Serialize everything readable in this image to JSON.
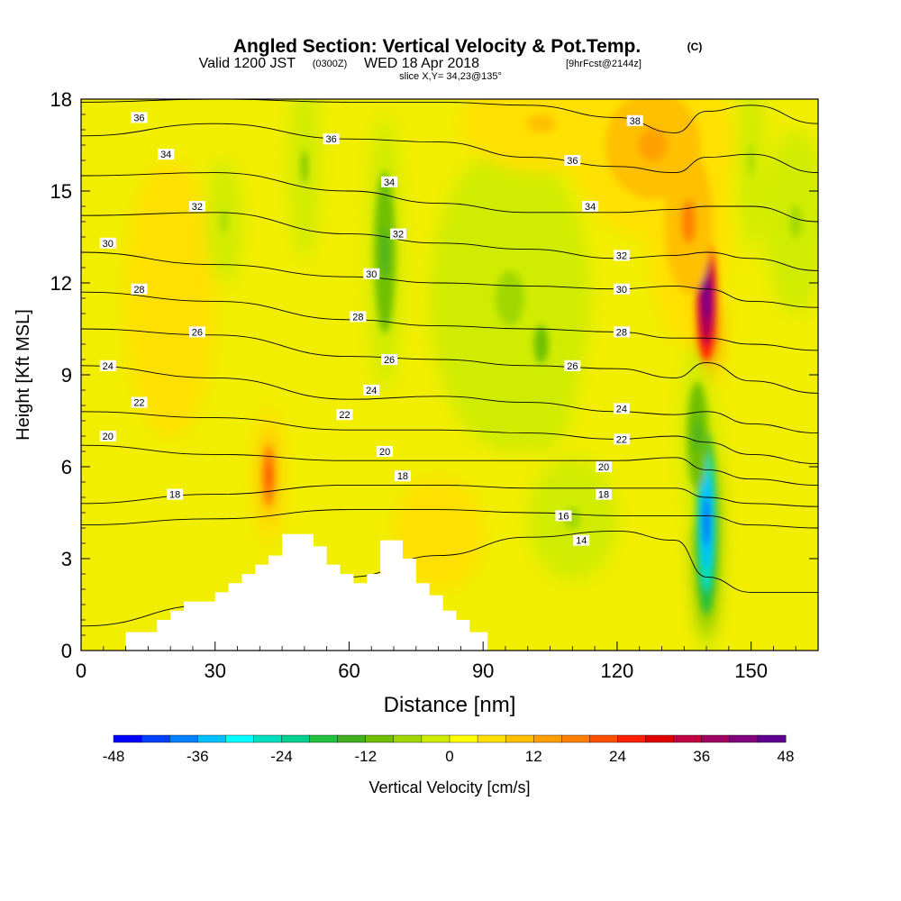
{
  "chart_data": {
    "type": "heatmap",
    "title": "Angled Section: Vertical Velocity & Pot.Temp.",
    "title_unit": "(C)",
    "subtitle_valid": "Valid 1200 JST",
    "subtitle_utc": "(0300Z)",
    "subtitle_date": "WED 18 Apr 2018",
    "subtitle_fcst": "[9hrFcst@2144z]",
    "slice_label": "slice X,Y= 34,23@135°",
    "xlabel": "Distance [nm]",
    "ylabel": "Height [Kft MSL]",
    "xlim": [
      0,
      165
    ],
    "ylim": [
      0,
      18
    ],
    "xticks": [
      0,
      30,
      60,
      90,
      120,
      150
    ],
    "yticks": [
      0,
      3,
      6,
      9,
      12,
      15,
      18
    ],
    "colorbar": {
      "label": "Vertical Velocity [cm/s]",
      "ticks": [
        -48,
        -36,
        -24,
        -12,
        0,
        12,
        24,
        36,
        48
      ],
      "colors": [
        "#0000ff",
        "#0040ff",
        "#0080ff",
        "#00c0ff",
        "#00ffff",
        "#00e0c0",
        "#00d090",
        "#20c040",
        "#40b020",
        "#70c000",
        "#a0d800",
        "#d0ec00",
        "#ffff00",
        "#ffe000",
        "#ffc000",
        "#ffa000",
        "#ff8000",
        "#ff5000",
        "#ff2000",
        "#e00000",
        "#c00040",
        "#a00060",
        "#800080",
        "#600090"
      ]
    },
    "terrain_kft": [
      [
        0,
        0
      ],
      [
        10,
        0
      ],
      [
        10,
        0.6
      ],
      [
        17,
        0.6
      ],
      [
        17,
        1
      ],
      [
        20,
        1
      ],
      [
        20,
        1.3
      ],
      [
        23,
        1.3
      ],
      [
        23,
        1.6
      ],
      [
        30,
        1.6
      ],
      [
        30,
        1.9
      ],
      [
        33,
        1.9
      ],
      [
        33,
        2.2
      ],
      [
        36,
        2.2
      ],
      [
        36,
        2.5
      ],
      [
        39,
        2.5
      ],
      [
        39,
        2.8
      ],
      [
        42,
        2.8
      ],
      [
        42,
        3.1
      ],
      [
        45,
        3.1
      ],
      [
        45,
        3.8
      ],
      [
        52,
        3.8
      ],
      [
        52,
        3.4
      ],
      [
        55,
        3.4
      ],
      [
        55,
        2.8
      ],
      [
        58,
        2.8
      ],
      [
        58,
        2.5
      ],
      [
        61,
        2.5
      ],
      [
        61,
        2.2
      ],
      [
        64,
        2.2
      ],
      [
        64,
        2.5
      ],
      [
        67,
        2.5
      ],
      [
        67,
        3.6
      ],
      [
        72,
        3.6
      ],
      [
        72,
        3
      ],
      [
        75,
        3
      ],
      [
        75,
        2.2
      ],
      [
        78,
        2.2
      ],
      [
        78,
        1.8
      ],
      [
        81,
        1.8
      ],
      [
        81,
        1.3
      ],
      [
        84,
        1.3
      ],
      [
        84,
        1
      ],
      [
        87,
        1
      ],
      [
        87,
        0.6
      ],
      [
        91,
        0.6
      ],
      [
        91,
        0
      ],
      [
        165,
        0
      ]
    ],
    "isentropes_c": [
      {
        "level": 14,
        "points": [
          [
            0,
            0.8
          ],
          [
            30,
            1.5
          ],
          [
            60,
            2.4
          ],
          [
            80,
            3.1
          ],
          [
            100,
            3.7
          ],
          [
            120,
            3.9
          ],
          [
            133,
            3.6
          ],
          [
            140,
            2.4
          ],
          [
            150,
            1.9
          ],
          [
            165,
            1.9
          ]
        ]
      },
      {
        "level": 16,
        "points": [
          [
            0,
            4.1
          ],
          [
            30,
            4.3
          ],
          [
            60,
            4.6
          ],
          [
            80,
            4.6
          ],
          [
            100,
            4.5
          ],
          [
            120,
            4.4
          ],
          [
            133,
            4.4
          ],
          [
            140,
            4.4
          ],
          [
            150,
            4.1
          ],
          [
            165,
            4.0
          ]
        ]
      },
      {
        "level": 18,
        "points": [
          [
            0,
            4.8
          ],
          [
            30,
            5.1
          ],
          [
            60,
            5.4
          ],
          [
            80,
            5.4
          ],
          [
            100,
            5.3
          ],
          [
            120,
            5.3
          ],
          [
            133,
            5.3
          ],
          [
            140,
            5.0
          ],
          [
            150,
            4.8
          ],
          [
            165,
            4.7
          ]
        ]
      },
      {
        "level": 20,
        "points": [
          [
            0,
            6.7
          ],
          [
            30,
            6.4
          ],
          [
            60,
            6.2
          ],
          [
            80,
            6.2
          ],
          [
            100,
            6.2
          ],
          [
            120,
            6.2
          ],
          [
            133,
            6.3
          ],
          [
            140,
            5.9
          ],
          [
            150,
            5.6
          ],
          [
            165,
            5.4
          ]
        ]
      },
      {
        "level": 22,
        "points": [
          [
            0,
            7.8
          ],
          [
            30,
            7.6
          ],
          [
            60,
            7.2
          ],
          [
            80,
            7.2
          ],
          [
            100,
            7.1
          ],
          [
            120,
            6.9
          ],
          [
            133,
            7.0
          ],
          [
            140,
            6.8
          ],
          [
            150,
            6.4
          ],
          [
            165,
            6.1
          ]
        ]
      },
      {
        "level": 24,
        "points": [
          [
            0,
            9.3
          ],
          [
            30,
            8.9
          ],
          [
            60,
            8.2
          ],
          [
            80,
            8.3
          ],
          [
            100,
            8.1
          ],
          [
            120,
            7.8
          ],
          [
            133,
            7.7
          ],
          [
            140,
            7.8
          ],
          [
            150,
            7.4
          ],
          [
            165,
            7.1
          ]
        ]
      },
      {
        "level": 26,
        "points": [
          [
            0,
            10.5
          ],
          [
            30,
            10.3
          ],
          [
            60,
            9.6
          ],
          [
            80,
            9.5
          ],
          [
            100,
            9.3
          ],
          [
            120,
            9.2
          ],
          [
            133,
            8.9
          ],
          [
            140,
            9.4
          ],
          [
            150,
            8.8
          ],
          [
            165,
            8.4
          ]
        ]
      },
      {
        "level": 28,
        "points": [
          [
            0,
            11.7
          ],
          [
            30,
            11.4
          ],
          [
            60,
            10.8
          ],
          [
            80,
            10.6
          ],
          [
            100,
            10.5
          ],
          [
            120,
            10.4
          ],
          [
            133,
            10.2
          ],
          [
            140,
            10.2
          ],
          [
            150,
            10.0
          ],
          [
            165,
            9.8
          ]
        ]
      },
      {
        "level": 30,
        "points": [
          [
            0,
            13.0
          ],
          [
            30,
            12.6
          ],
          [
            60,
            12.2
          ],
          [
            80,
            12.0
          ],
          [
            100,
            11.9
          ],
          [
            120,
            11.8
          ],
          [
            133,
            11.9
          ],
          [
            140,
            11.8
          ],
          [
            150,
            11.4
          ],
          [
            165,
            11.2
          ]
        ]
      },
      {
        "level": 32,
        "points": [
          [
            0,
            14.2
          ],
          [
            30,
            14.3
          ],
          [
            60,
            13.6
          ],
          [
            80,
            13.3
          ],
          [
            100,
            13.1
          ],
          [
            120,
            12.8
          ],
          [
            133,
            12.9
          ],
          [
            140,
            13.0
          ],
          [
            150,
            12.8
          ],
          [
            165,
            12.4
          ]
        ]
      },
      {
        "level": 34,
        "points": [
          [
            0,
            15.5
          ],
          [
            30,
            15.6
          ],
          [
            60,
            15.0
          ],
          [
            80,
            14.6
          ],
          [
            100,
            14.3
          ],
          [
            120,
            14.3
          ],
          [
            133,
            14.4
          ],
          [
            140,
            14.5
          ],
          [
            150,
            14.5
          ],
          [
            165,
            14.0
          ]
        ]
      },
      {
        "level": 36,
        "points": [
          [
            0,
            16.8
          ],
          [
            30,
            17.2
          ],
          [
            60,
            16.7
          ],
          [
            80,
            16.6
          ],
          [
            100,
            16.1
          ],
          [
            120,
            15.8
          ],
          [
            133,
            15.6
          ],
          [
            140,
            16.1
          ],
          [
            150,
            16.2
          ],
          [
            165,
            15.6
          ]
        ]
      },
      {
        "level": 38,
        "points": [
          [
            0,
            17.9
          ],
          [
            30,
            18.0
          ],
          [
            60,
            17.9
          ],
          [
            80,
            17.9
          ],
          [
            100,
            17.8
          ],
          [
            120,
            17.4
          ],
          [
            133,
            16.9
          ],
          [
            140,
            17.6
          ],
          [
            150,
            17.8
          ],
          [
            165,
            17.2
          ]
        ]
      }
    ],
    "isentrope_labels": [
      {
        "text": "36",
        "x": 13,
        "y": 17.4
      },
      {
        "text": "34",
        "x": 19,
        "y": 16.2
      },
      {
        "text": "32",
        "x": 26,
        "y": 14.5
      },
      {
        "text": "30",
        "x": 6,
        "y": 13.3
      },
      {
        "text": "28",
        "x": 13,
        "y": 11.8
      },
      {
        "text": "26",
        "x": 26,
        "y": 10.4
      },
      {
        "text": "24",
        "x": 6,
        "y": 9.3
      },
      {
        "text": "22",
        "x": 13,
        "y": 8.1
      },
      {
        "text": "20",
        "x": 6,
        "y": 7.0
      },
      {
        "text": "18",
        "x": 21,
        "y": 5.1
      },
      {
        "text": "36",
        "x": 56,
        "y": 16.7
      },
      {
        "text": "34",
        "x": 69,
        "y": 15.3
      },
      {
        "text": "32",
        "x": 71,
        "y": 13.6
      },
      {
        "text": "30",
        "x": 65,
        "y": 12.3
      },
      {
        "text": "28",
        "x": 62,
        "y": 10.9
      },
      {
        "text": "26",
        "x": 69,
        "y": 9.5
      },
      {
        "text": "24",
        "x": 65,
        "y": 8.5
      },
      {
        "text": "22",
        "x": 59,
        "y": 7.7
      },
      {
        "text": "20",
        "x": 68,
        "y": 6.5
      },
      {
        "text": "18",
        "x": 72,
        "y": 5.7
      },
      {
        "text": "38",
        "x": 124,
        "y": 17.3
      },
      {
        "text": "36",
        "x": 110,
        "y": 16.0
      },
      {
        "text": "34",
        "x": 114,
        "y": 14.5
      },
      {
        "text": "32",
        "x": 121,
        "y": 12.9
      },
      {
        "text": "30",
        "x": 121,
        "y": 11.8
      },
      {
        "text": "28",
        "x": 121,
        "y": 10.4
      },
      {
        "text": "26",
        "x": 110,
        "y": 9.3
      },
      {
        "text": "24",
        "x": 121,
        "y": 7.9
      },
      {
        "text": "22",
        "x": 121,
        "y": 6.9
      },
      {
        "text": "20",
        "x": 117,
        "y": 6.0
      },
      {
        "text": "18",
        "x": 117,
        "y": 5.1
      },
      {
        "text": "16",
        "x": 108,
        "y": 4.4
      },
      {
        "text": "14",
        "x": 112,
        "y": 3.6
      }
    ],
    "velocity_features": [
      {
        "x": 140,
        "y": 11.5,
        "rx": 4,
        "ry": 3.5,
        "w": 46
      },
      {
        "x": 136,
        "y": 14.0,
        "rx": 9,
        "ry": 4,
        "w": 18
      },
      {
        "x": 140,
        "y": 4.2,
        "rx": 3.5,
        "ry": 4.5,
        "w": -42
      },
      {
        "x": 138,
        "y": 7.0,
        "rx": 4,
        "ry": 3,
        "w": -16
      },
      {
        "x": 42,
        "y": 5.7,
        "rx": 3,
        "ry": 2.2,
        "w": 22
      },
      {
        "x": 68,
        "y": 13.0,
        "rx": 4,
        "ry": 4.5,
        "w": -16
      },
      {
        "x": 50,
        "y": 15.8,
        "rx": 3.5,
        "ry": 3,
        "w": -10
      },
      {
        "x": 103,
        "y": 10.0,
        "rx": 9,
        "ry": 3.5,
        "w": -11
      },
      {
        "x": 96,
        "y": 11.5,
        "rx": 18,
        "ry": 5,
        "w": -6
      },
      {
        "x": 110,
        "y": 4.3,
        "rx": 10,
        "ry": 2,
        "w": -5
      },
      {
        "x": 128,
        "y": 16.5,
        "rx": 18,
        "ry": 3,
        "w": 12
      },
      {
        "x": 103,
        "y": 17.2,
        "rx": 18,
        "ry": 1.6,
        "w": 8
      },
      {
        "x": 20,
        "y": 11.5,
        "rx": 10,
        "ry": 4.5,
        "w": 5
      },
      {
        "x": 80,
        "y": 3.8,
        "rx": 10,
        "ry": 1.8,
        "w": 6
      },
      {
        "x": 160,
        "y": 14.0,
        "rx": 7,
        "ry": 3,
        "w": -7
      },
      {
        "x": 32,
        "y": 14.0,
        "rx": 4,
        "ry": 2,
        "w": -5
      },
      {
        "x": 150,
        "y": 16.0,
        "rx": 3,
        "ry": 3,
        "w": -6
      }
    ]
  }
}
